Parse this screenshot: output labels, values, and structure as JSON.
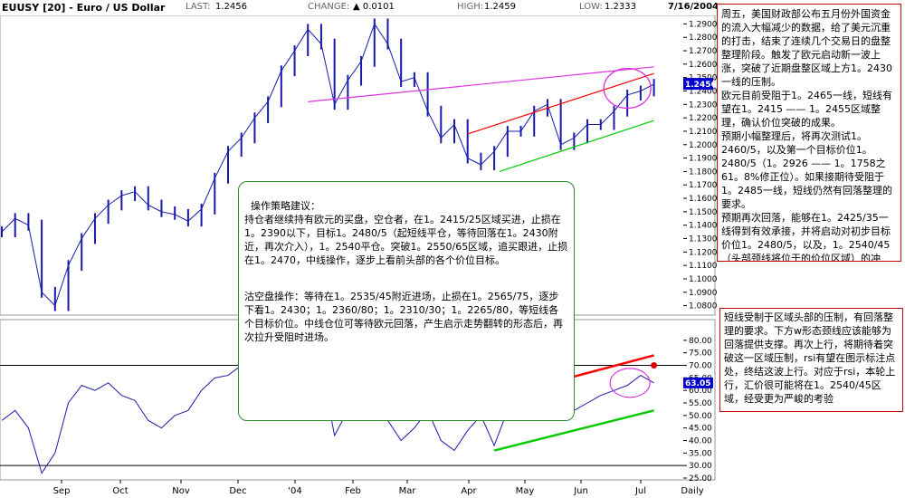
{
  "header": {
    "symbol": "EUUSY [20] - Euro / US Dollar",
    "last_label": "LAST:",
    "last_value": "1.2456",
    "change_label": "CHANGE:",
    "change_value": "▲ 0.0101",
    "high_label": "HIGH:",
    "high_value": "1.2459",
    "low_label": "LOW:",
    "low_value": "1.2333",
    "date": "7/16/2004"
  },
  "chart_data": [
    {
      "type": "line",
      "title": "EUUSY [20] - Euro / US Dollar",
      "ylim": [
        1.075,
        1.295
      ],
      "y_ticks": [
        "1.2900",
        "1.2800",
        "1.2700",
        "1.2600",
        "1.2500",
        "1.2400",
        "1.2300",
        "1.2200",
        "1.2100",
        "1.2000",
        "1.1900",
        "1.1800",
        "1.1700",
        "1.1600",
        "1.1500",
        "1.1400",
        "1.1300",
        "1.1200",
        "1.1100",
        "1.1000",
        "1.0900",
        "1.0800"
      ],
      "last_price_label": "1.2456",
      "x": [
        0,
        5,
        10,
        15,
        20,
        25,
        30,
        35,
        40,
        45,
        50,
        55,
        60,
        65,
        70,
        75,
        80,
        85,
        90,
        95,
        100,
        105,
        110,
        115,
        120,
        125,
        130,
        135,
        140,
        145,
        150,
        155,
        160,
        165,
        170,
        175,
        180,
        185,
        190,
        195,
        200,
        205,
        210,
        215,
        220,
        225,
        230,
        235,
        240,
        245
      ],
      "values": [
        1.135,
        1.145,
        1.14,
        1.09,
        1.08,
        1.11,
        1.13,
        1.145,
        1.155,
        1.162,
        1.165,
        1.155,
        1.15,
        1.148,
        1.143,
        1.152,
        1.175,
        1.195,
        1.205,
        1.22,
        1.232,
        1.255,
        1.27,
        1.286,
        1.275,
        1.23,
        1.248,
        1.262,
        1.29,
        1.275,
        1.247,
        1.25,
        1.225,
        1.205,
        1.215,
        1.19,
        1.185,
        1.195,
        1.21,
        1.21,
        1.225,
        1.23,
        1.2,
        1.205,
        1.215,
        1.215,
        1.225,
        1.237,
        1.24,
        1.245
      ],
      "trendlines": [
        {
          "color": "#dd33dd",
          "from": [
            115,
            1.232
          ],
          "to": [
            245,
            1.258
          ]
        },
        {
          "color": "#ff0000",
          "from": [
            175,
            1.208
          ],
          "to": [
            245,
            1.253
          ]
        },
        {
          "color": "#00cc00",
          "from": [
            187,
            1.18
          ],
          "to": [
            245,
            1.218
          ]
        }
      ],
      "circle_color": "#dd33dd"
    },
    {
      "type": "line",
      "title": "RSI (EUUSY,14) = 63.05",
      "ylim": [
        25,
        85
      ],
      "y_ticks": [
        "80.00",
        "75.00",
        "70.00",
        "65.00",
        "60.00",
        "55.00",
        "50.00",
        "45.00",
        "40.00",
        "35.00",
        "30.00",
        "25.00"
      ],
      "reference_lines": [
        70,
        30
      ],
      "last_value_label": "63.05",
      "x_ticks": [
        "Sep",
        "Oct",
        "Nov",
        "Dec",
        "'04",
        "Feb",
        "Mar",
        "Apr",
        "May",
        "Jun",
        "Jul",
        "Daily"
      ],
      "x": [
        0,
        5,
        10,
        15,
        20,
        25,
        30,
        35,
        40,
        45,
        50,
        55,
        60,
        65,
        70,
        75,
        80,
        85,
        90,
        95,
        100,
        105,
        110,
        115,
        120,
        125,
        130,
        135,
        140,
        145,
        150,
        155,
        160,
        165,
        170,
        175,
        180,
        185,
        190,
        195,
        200,
        205,
        210,
        215,
        220,
        225,
        230,
        235,
        240,
        245
      ],
      "values": [
        48,
        52,
        45,
        27,
        35,
        55,
        62,
        60,
        63,
        58,
        56,
        48,
        45,
        50,
        52,
        60,
        65,
        66,
        70,
        72,
        74,
        76,
        78,
        80,
        70,
        42,
        52,
        55,
        60,
        48,
        40,
        45,
        52,
        40,
        36,
        44,
        50,
        38,
        52,
        55,
        58,
        62,
        48,
        52,
        55,
        58,
        60,
        62,
        66,
        63
      ],
      "trendlines": [
        {
          "color": "#ff0000",
          "from": [
            160,
            50
          ],
          "to": [
            245,
            74
          ]
        },
        {
          "color": "#00cc00",
          "from": [
            185,
            36
          ],
          "to": [
            245,
            52
          ]
        }
      ]
    }
  ],
  "annotations": {
    "right_box": "周五，美国财政部公布五月份外国资金的流入大幅减少的数据，给了美元沉重的打击，结束了连续几个交易日的盘整整理阶段。触发了欧元启动新一波上涨，突破了近期盘整区域上方1。2430一线的压制。\n欧元目前受阻于1。2465一线，短线有望在1。2415 —— 1。2455区域整理，确认价位突破的成果。\n预期小幅整理后，将再次测试1。2460/5，以及第一个目标价位1。2480/5（1。2926 —— 1。1758之61。8%修正位）。如果接期待受阻于1。2485一线，短线仍然有回落整理的要求。\n预期再次回落，能够在1。2425/35一线得到有效承接，并将启动对初步目标价位1。2480/5，以及，1。2540/45（头部颈线将位于的价位区域）的冲击。",
    "strategy_p1": "操作策略建议：\n持仓者继续持有欧元的买盘，空仓者，在1。2415/25区域买进，止损在1。2390以下，目标1。2480/5（起短线平仓，等待回落在1。2430附近，再次介入），1。2540平仓。突破1。2550/65区域，追买跟进，止损在1。2470，中线操作，逐步上看前头部的各个价位目标。",
    "strategy_p2": "沽空盘操作：等待在1。2535/45附近进场，止损在1。2565/75，逐步下看1。2430；1。2360/80；1。2310/30；1。2265/80，等短线各个目标价位。中线仓位可等待欧元回落，产生启示走势翻转的形态后，再次拉升受阻时进场。",
    "rsi_box": "短线受制于区域头部的压制，有回落整理的要求。下方w形态颈线应该能够为回落提供支撑。再次上行，将期待着突破这一区域压制，rsi有望在图示标注点处，终结这波上行。对应于rsi，本轮上行，汇价很可能将在1。2540/45区域，经受更为严峻的考验"
  }
}
